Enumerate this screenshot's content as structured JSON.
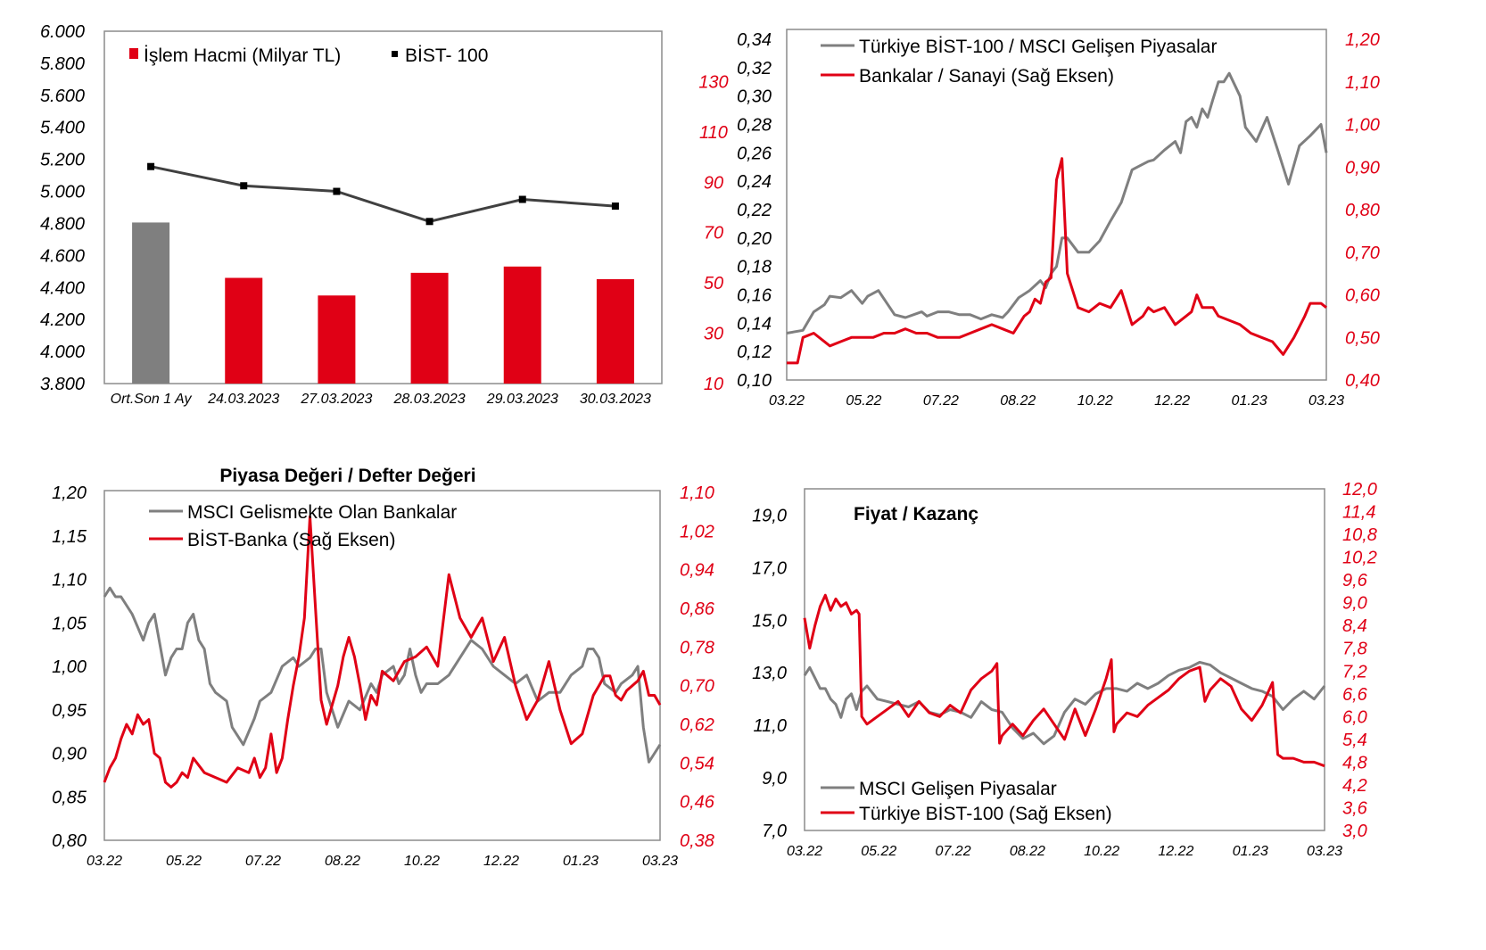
{
  "colors": {
    "gray": "#7f7f7f",
    "red": "#e00015",
    "dark": "#404040",
    "frame": "#8c8c8c"
  },
  "chart_data": [
    {
      "type": "bar",
      "title": "",
      "categories": [
        "Ort.Son 1 Ay",
        "24.03.2023",
        "27.03.2023",
        "28.03.2023",
        "29.03.2023",
        "30.03.2023"
      ],
      "left_axis": {
        "min": 3800,
        "max": 6000,
        "ticks": [
          "6.000",
          "5.800",
          "5.600",
          "5.400",
          "5.200",
          "5.000",
          "4.800",
          "4.600",
          "4.400",
          "4.200",
          "4.000",
          "3.800"
        ]
      },
      "right_axis": {
        "min": 10,
        "max": 150,
        "ticks": [
          "130",
          "110",
          "90",
          "70",
          "50",
          "30",
          "10"
        ],
        "tick_values": [
          130,
          110,
          90,
          70,
          50,
          30,
          10
        ]
      },
      "series": [
        {
          "name": "İşlem Hacmi (Milyar TL)",
          "kind": "bar",
          "axis": "right",
          "values": [
            74,
            52,
            45,
            54,
            56.5,
            51.5
          ],
          "colors": [
            "#7f7f7f",
            "#e00015",
            "#e00015",
            "#e00015",
            "#e00015",
            "#e00015"
          ]
        },
        {
          "name": "BİST- 100",
          "kind": "line",
          "axis": "left",
          "values": [
            5155,
            5035,
            5000,
            4812,
            4950,
            4908
          ]
        }
      ]
    },
    {
      "type": "line",
      "title": "",
      "x_ticks": [
        "03.22",
        "05.22",
        "07.22",
        "08.22",
        "10.22",
        "12.22",
        "01.23",
        "03.23"
      ],
      "left_axis": {
        "min": 0.1,
        "max": 0.34,
        "ticks": [
          "0,34",
          "0,32",
          "0,30",
          "0,28",
          "0,26",
          "0,24",
          "0,22",
          "0,20",
          "0,18",
          "0,16",
          "0,14",
          "0,12",
          "0,10"
        ]
      },
      "right_axis": {
        "min": 0.4,
        "max": 1.2,
        "ticks": [
          "1,20",
          "1,10",
          "1,00",
          "0,90",
          "0,80",
          "0,70",
          "0,60",
          "0,50",
          "0,40"
        ]
      },
      "series": [
        {
          "name": "Türkiye BİST-100 / MSCI Gelişen Piyasalar",
          "axis": "left",
          "color": "gray",
          "x": [
            0,
            3,
            5,
            7,
            8,
            10,
            12,
            14,
            15,
            17,
            20,
            22,
            25,
            26,
            28,
            30,
            32,
            34,
            36,
            38,
            40,
            41,
            43,
            45,
            47,
            48,
            49,
            50,
            51,
            52,
            54,
            56,
            58,
            60,
            62,
            64,
            66,
            67,
            68,
            70,
            72,
            73,
            74,
            75,
            76,
            77,
            78,
            79,
            80,
            81,
            82,
            84,
            85,
            87,
            89,
            91,
            93,
            95,
            97,
            99,
            100
          ],
          "y": [
            0.133,
            0.135,
            0.148,
            0.153,
            0.159,
            0.158,
            0.163,
            0.154,
            0.159,
            0.163,
            0.146,
            0.144,
            0.148,
            0.145,
            0.148,
            0.148,
            0.146,
            0.146,
            0.143,
            0.146,
            0.144,
            0.148,
            0.158,
            0.163,
            0.17,
            0.165,
            0.175,
            0.18,
            0.2,
            0.2,
            0.19,
            0.19,
            0.198,
            0.212,
            0.225,
            0.248,
            0.252,
            0.254,
            0.255,
            0.262,
            0.268,
            0.26,
            0.282,
            0.285,
            0.278,
            0.291,
            0.285,
            0.298,
            0.31,
            0.31,
            0.316,
            0.3,
            0.278,
            0.268,
            0.285,
            0.262,
            0.238,
            0.265,
            0.272,
            0.28,
            0.26
          ]
        },
        {
          "name": "Bankalar / Sanayi (Sağ Eksen)",
          "axis": "right",
          "color": "red",
          "x": [
            0,
            2,
            3,
            5,
            8,
            10,
            12,
            14,
            16,
            18,
            20,
            22,
            24,
            26,
            28,
            30,
            32,
            34,
            36,
            38,
            40,
            42,
            44,
            45,
            46,
            47,
            48,
            49,
            50,
            51,
            52,
            54,
            56,
            58,
            60,
            62,
            64,
            66,
            67,
            68,
            70,
            72,
            74,
            75,
            76,
            77,
            78,
            79,
            80,
            82,
            84,
            86,
            88,
            90,
            92,
            94,
            96,
            97,
            99,
            100
          ],
          "y": [
            0.44,
            0.44,
            0.5,
            0.51,
            0.48,
            0.49,
            0.5,
            0.5,
            0.5,
            0.51,
            0.51,
            0.52,
            0.51,
            0.51,
            0.5,
            0.5,
            0.5,
            0.51,
            0.52,
            0.53,
            0.52,
            0.51,
            0.55,
            0.56,
            0.59,
            0.58,
            0.63,
            0.64,
            0.87,
            0.92,
            0.65,
            0.57,
            0.56,
            0.58,
            0.57,
            0.61,
            0.53,
            0.55,
            0.57,
            0.56,
            0.57,
            0.53,
            0.55,
            0.56,
            0.6,
            0.57,
            0.57,
            0.57,
            0.55,
            0.54,
            0.53,
            0.51,
            0.5,
            0.49,
            0.46,
            0.5,
            0.55,
            0.58,
            0.58,
            0.57
          ]
        }
      ]
    },
    {
      "type": "line",
      "title": "Piyasa Değeri / Defter Değeri",
      "x_ticks": [
        "03.22",
        "05.22",
        "07.22",
        "08.22",
        "10.22",
        "12.22",
        "01.23",
        "03.23"
      ],
      "left_axis": {
        "min": 0.8,
        "max": 1.2,
        "ticks": [
          "1,20",
          "1,15",
          "1,10",
          "1,05",
          "1,00",
          "0,95",
          "0,90",
          "0,85",
          "0,80"
        ]
      },
      "right_axis": {
        "min": 0.38,
        "max": 1.1,
        "ticks": [
          "1,10",
          "1,02",
          "0,94",
          "0,86",
          "0,78",
          "0,70",
          "0,62",
          "0,54",
          "0,46",
          "0,38"
        ]
      },
      "series": [
        {
          "name": "MSCI Gelismekte Olan Bankalar",
          "axis": "left",
          "color": "gray",
          "x": [
            0,
            1,
            2,
            3,
            5,
            7,
            8,
            9,
            11,
            12,
            13,
            14,
            15,
            16,
            17,
            18,
            19,
            20,
            22,
            23,
            25,
            27,
            28,
            30,
            32,
            34,
            35,
            37,
            38,
            39,
            40,
            42,
            44,
            46,
            48,
            49,
            50,
            52,
            53,
            54,
            55,
            56,
            57,
            58,
            60,
            62,
            64,
            66,
            68,
            70,
            72,
            74,
            76,
            78,
            80,
            82,
            84,
            86,
            87,
            88,
            89,
            90,
            92,
            93,
            95,
            96,
            97,
            98,
            99,
            100
          ],
          "y": [
            1.08,
            1.09,
            1.08,
            1.08,
            1.06,
            1.03,
            1.05,
            1.06,
            0.99,
            1.01,
            1.02,
            1.02,
            1.05,
            1.06,
            1.03,
            1.02,
            0.98,
            0.97,
            0.96,
            0.93,
            0.91,
            0.94,
            0.96,
            0.97,
            1.0,
            1.01,
            1.0,
            1.01,
            1.02,
            1.02,
            0.97,
            0.93,
            0.96,
            0.95,
            0.98,
            0.97,
            0.99,
            1.0,
            0.98,
            0.99,
            1.02,
            0.99,
            0.97,
            0.98,
            0.98,
            0.99,
            1.01,
            1.03,
            1.02,
            1.0,
            0.99,
            0.98,
            0.99,
            0.96,
            0.97,
            0.97,
            0.99,
            1.0,
            1.02,
            1.02,
            1.01,
            0.98,
            0.97,
            0.98,
            0.99,
            1.0,
            0.93,
            0.89,
            0.9,
            0.91
          ]
        },
        {
          "name": "BİST-Banka (Sağ Eksen)",
          "axis": "right",
          "color": "red",
          "x": [
            0,
            1,
            2,
            3,
            4,
            5,
            6,
            7,
            8,
            9,
            10,
            11,
            12,
            13,
            14,
            15,
            16,
            18,
            20,
            22,
            24,
            26,
            27,
            28,
            29,
            30,
            31,
            32,
            33,
            34,
            35,
            36,
            37,
            38,
            39,
            40,
            41,
            42,
            43,
            44,
            45,
            46,
            47,
            48,
            49,
            50,
            52,
            54,
            56,
            58,
            60,
            62,
            64,
            66,
            68,
            70,
            72,
            74,
            76,
            78,
            80,
            82,
            84,
            86,
            88,
            89,
            90,
            91,
            92,
            93,
            94,
            95,
            96,
            97,
            98,
            99,
            100
          ],
          "y": [
            0.5,
            0.53,
            0.55,
            0.59,
            0.62,
            0.6,
            0.64,
            0.62,
            0.63,
            0.56,
            0.55,
            0.5,
            0.49,
            0.5,
            0.52,
            0.51,
            0.55,
            0.52,
            0.51,
            0.5,
            0.53,
            0.52,
            0.55,
            0.51,
            0.53,
            0.6,
            0.52,
            0.55,
            0.63,
            0.7,
            0.76,
            0.84,
            1.05,
            0.86,
            0.67,
            0.62,
            0.66,
            0.7,
            0.76,
            0.8,
            0.76,
            0.7,
            0.63,
            0.68,
            0.66,
            0.73,
            0.71,
            0.75,
            0.76,
            0.78,
            0.74,
            0.93,
            0.84,
            0.8,
            0.84,
            0.75,
            0.8,
            0.7,
            0.63,
            0.67,
            0.75,
            0.65,
            0.58,
            0.6,
            0.68,
            0.7,
            0.72,
            0.72,
            0.68,
            0.67,
            0.69,
            0.7,
            0.71,
            0.73,
            0.68,
            0.68,
            0.66
          ]
        }
      ]
    },
    {
      "type": "line",
      "title": "Fiyat / Kazanç",
      "x_ticks": [
        "03.22",
        "05.22",
        "07.22",
        "08.22",
        "10.22",
        "12.22",
        "01.23",
        "03.23"
      ],
      "left_axis": {
        "min": 7.0,
        "max": 20.0,
        "ticks": [
          "19,0",
          "17,0",
          "15,0",
          "13,0",
          "11,0",
          "9,0",
          "7,0"
        ],
        "tick_values": [
          19,
          17,
          15,
          13,
          11,
          9,
          7
        ]
      },
      "right_axis": {
        "min": 3.0,
        "max": 12.0,
        "ticks": [
          "12,0",
          "11,4",
          "10,8",
          "10,2",
          "9,6",
          "9,0",
          "8,4",
          "7,8",
          "7,2",
          "6,6",
          "6,0",
          "5,4",
          "4,8",
          "4,2",
          "3,6",
          "3,0"
        ]
      },
      "series": [
        {
          "name": "MSCI Gelişen Piyasalar",
          "axis": "left",
          "color": "gray",
          "x": [
            0,
            1,
            2,
            3,
            4,
            5,
            6,
            7,
            8,
            9,
            10,
            11,
            12,
            14,
            16,
            18,
            20,
            22,
            24,
            26,
            28,
            30,
            32,
            34,
            36,
            38,
            40,
            42,
            44,
            46,
            48,
            50,
            52,
            54,
            56,
            58,
            60,
            62,
            64,
            66,
            68,
            70,
            72,
            74,
            76,
            78,
            80,
            82,
            84,
            86,
            88,
            90,
            92,
            94,
            96,
            98,
            100
          ],
          "y": [
            12.9,
            13.2,
            12.8,
            12.4,
            12.4,
            12.0,
            11.8,
            11.3,
            12.0,
            12.2,
            11.6,
            12.3,
            12.5,
            12.0,
            11.9,
            11.8,
            11.7,
            11.9,
            11.5,
            11.4,
            11.6,
            11.5,
            11.3,
            11.9,
            11.6,
            11.5,
            10.9,
            10.5,
            10.7,
            10.3,
            10.6,
            11.5,
            12.0,
            11.8,
            12.2,
            12.4,
            12.4,
            12.3,
            12.6,
            12.4,
            12.6,
            12.9,
            13.1,
            13.2,
            13.4,
            13.3,
            13.0,
            12.8,
            12.6,
            12.4,
            12.3,
            12.1,
            11.6,
            12.0,
            12.3,
            12.0,
            12.5
          ]
        },
        {
          "name": "Türkiye BİST-100 (Sağ Eksen)",
          "axis": "right",
          "color": "red",
          "x": [
            0,
            1,
            2,
            3,
            4,
            5,
            6,
            7,
            8,
            9,
            10,
            10.5,
            11,
            12,
            14,
            16,
            18,
            20,
            22,
            24,
            26,
            28,
            30,
            32,
            34,
            36,
            37,
            37.5,
            38,
            40,
            42,
            44,
            46,
            48,
            50,
            52,
            54,
            56,
            58,
            59,
            59.5,
            60,
            62,
            64,
            66,
            68,
            70,
            72,
            74,
            76,
            77,
            78,
            80,
            82,
            84,
            86,
            88,
            89,
            90,
            91,
            92,
            94,
            96,
            98,
            100
          ],
          "y": [
            8.6,
            7.8,
            8.4,
            8.9,
            9.2,
            8.8,
            9.1,
            8.9,
            9.0,
            8.7,
            8.8,
            8.7,
            6.0,
            5.8,
            6.0,
            6.2,
            6.4,
            6.0,
            6.4,
            6.1,
            6.0,
            6.3,
            6.1,
            6.7,
            7.0,
            7.2,
            7.4,
            5.3,
            5.5,
            5.8,
            5.5,
            5.9,
            6.2,
            5.8,
            5.4,
            6.2,
            5.5,
            6.2,
            7.0,
            7.5,
            5.6,
            5.8,
            6.1,
            6.0,
            6.3,
            6.5,
            6.7,
            7.0,
            7.2,
            7.3,
            6.4,
            6.7,
            7.0,
            6.8,
            6.2,
            5.9,
            6.3,
            6.6,
            6.9,
            5.0,
            4.9,
            4.9,
            4.8,
            4.8,
            4.7
          ]
        }
      ]
    }
  ]
}
